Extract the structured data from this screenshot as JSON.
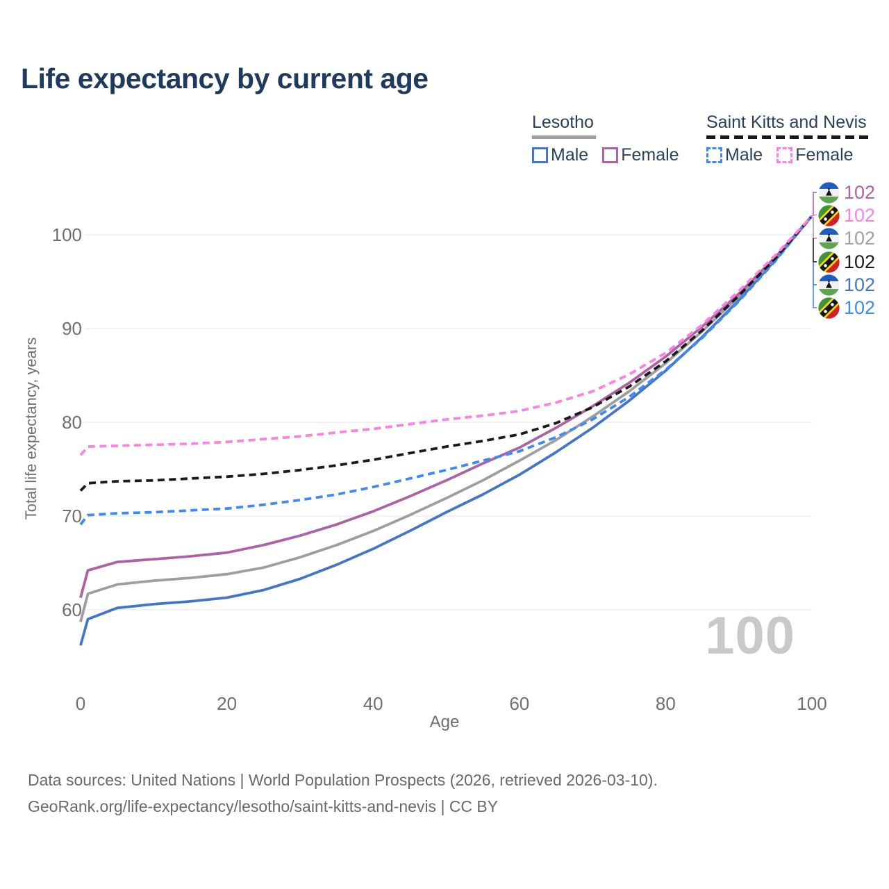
{
  "title": "Life expectancy by current age",
  "legend": {
    "groups": [
      {
        "label": "Lesotho",
        "line_style": "solid",
        "underline_color": "#9e9e9e",
        "items": [
          {
            "label": "Male",
            "color": "#4575c8"
          },
          {
            "label": "Female",
            "color": "#ad62a5"
          }
        ]
      },
      {
        "label": "Saint Kitts and Nevis",
        "line_style": "dashed",
        "underline_color": "#1a1a1a",
        "items": [
          {
            "label": "Male",
            "color": "#3d8af7"
          },
          {
            "label": "Female",
            "color": "#fd80e4"
          }
        ]
      }
    ]
  },
  "chart_data": {
    "type": "line",
    "title": "Life expectancy by current age",
    "xlabel": "Age",
    "ylabel": "Total life expectancy, years",
    "xlim": [
      0,
      100
    ],
    "ylim": [
      54,
      104
    ],
    "xticks": [
      0,
      20,
      40,
      60,
      80,
      100
    ],
    "yticks": [
      60,
      70,
      80,
      90,
      100
    ],
    "grid": "horizontal-only",
    "x": [
      0,
      1,
      5,
      10,
      15,
      20,
      25,
      30,
      35,
      40,
      45,
      50,
      55,
      60,
      65,
      70,
      75,
      80,
      85,
      90,
      95,
      100
    ],
    "series": [
      {
        "id": "lesotho-male",
        "name": "Lesotho Male",
        "country": "Lesotho",
        "flag": "lesotho",
        "color": "#4575c8",
        "dashed": false,
        "end_label": "102",
        "label_row": 4,
        "values": [
          56.2,
          59.0,
          60.2,
          60.6,
          60.9,
          61.3,
          62.1,
          63.3,
          64.8,
          66.5,
          68.4,
          70.4,
          72.3,
          74.4,
          76.8,
          79.4,
          82.3,
          85.5,
          89.1,
          93.0,
          97.3,
          102
        ]
      },
      {
        "id": "lesotho-total",
        "name": "Lesotho Total",
        "country": "Lesotho",
        "flag": "lesotho",
        "color": "#9e9e9e",
        "dashed": false,
        "end_label": "102",
        "label_row": 2,
        "values": [
          58.7,
          61.7,
          62.7,
          63.1,
          63.4,
          63.8,
          64.5,
          65.6,
          66.9,
          68.4,
          70.1,
          71.9,
          73.8,
          75.9,
          78.1,
          80.6,
          83.3,
          86.3,
          89.7,
          93.4,
          97.5,
          102
        ]
      },
      {
        "id": "lesotho-female",
        "name": "Lesotho Female",
        "country": "Lesotho",
        "flag": "lesotho",
        "color": "#ad62a5",
        "dashed": false,
        "end_label": "102",
        "label_row": 0,
        "values": [
          61.3,
          64.2,
          65.1,
          65.4,
          65.7,
          66.1,
          66.9,
          67.9,
          69.1,
          70.5,
          72.1,
          73.8,
          75.6,
          77.3,
          79.4,
          81.7,
          84.2,
          87.0,
          90.2,
          93.7,
          97.6,
          102
        ]
      },
      {
        "id": "skn-male",
        "name": "Saint Kitts and Nevis Male",
        "country": "Saint Kitts and Nevis",
        "flag": "skn",
        "color": "#3d8af7",
        "dashed": true,
        "end_label": "102",
        "label_row": 5,
        "values": [
          69.1,
          70.1,
          70.3,
          70.4,
          70.6,
          70.8,
          71.2,
          71.7,
          72.3,
          73.1,
          74.0,
          74.9,
          75.9,
          76.9,
          78.4,
          80.3,
          82.7,
          85.6,
          89.0,
          92.9,
          97.2,
          102
        ]
      },
      {
        "id": "skn-total",
        "name": "Saint Kitts and Nevis Total",
        "country": "Saint Kitts and Nevis",
        "flag": "skn",
        "color": "#1a1a1a",
        "dashed": true,
        "end_label": "102",
        "label_row": 3,
        "values": [
          72.7,
          73.5,
          73.7,
          73.8,
          74.0,
          74.2,
          74.5,
          74.9,
          75.4,
          76.0,
          76.7,
          77.4,
          78.0,
          78.7,
          79.9,
          81.6,
          83.8,
          86.5,
          89.8,
          93.5,
          97.5,
          102
        ]
      },
      {
        "id": "skn-female",
        "name": "Saint Kitts and Nevis Female",
        "country": "Saint Kitts and Nevis",
        "flag": "skn",
        "color": "#fd80e4",
        "dashed": true,
        "end_label": "102",
        "label_row": 1,
        "values": [
          76.5,
          77.4,
          77.5,
          77.6,
          77.7,
          77.9,
          78.2,
          78.5,
          78.9,
          79.3,
          79.8,
          80.3,
          80.7,
          81.2,
          82.1,
          83.3,
          85.1,
          87.4,
          90.4,
          94.0,
          97.8,
          102
        ]
      }
    ],
    "legend_position": "top-right",
    "annotations": {
      "age_counter": "100"
    }
  },
  "watermark": "100",
  "footer": {
    "line1": "Data sources: United Nations | World Population Prospects (2026, retrieved 2026-03-10).",
    "line2": "GeoRank.org/life-expectancy/lesotho/saint-kitts-and-nevis | CC BY"
  },
  "colors": {
    "title": "#1e3a5f",
    "axis_text": "#6f6f6f",
    "gridline": "#e9e9e9",
    "watermark": "#c9c9c9",
    "lesotho_male": "#4575c8",
    "lesotho_female": "#ad62a5",
    "lesotho_total": "#9e9e9e",
    "skn_male": "#3d8af7",
    "skn_female": "#fd80e4",
    "skn_total": "#1a1a1a"
  }
}
